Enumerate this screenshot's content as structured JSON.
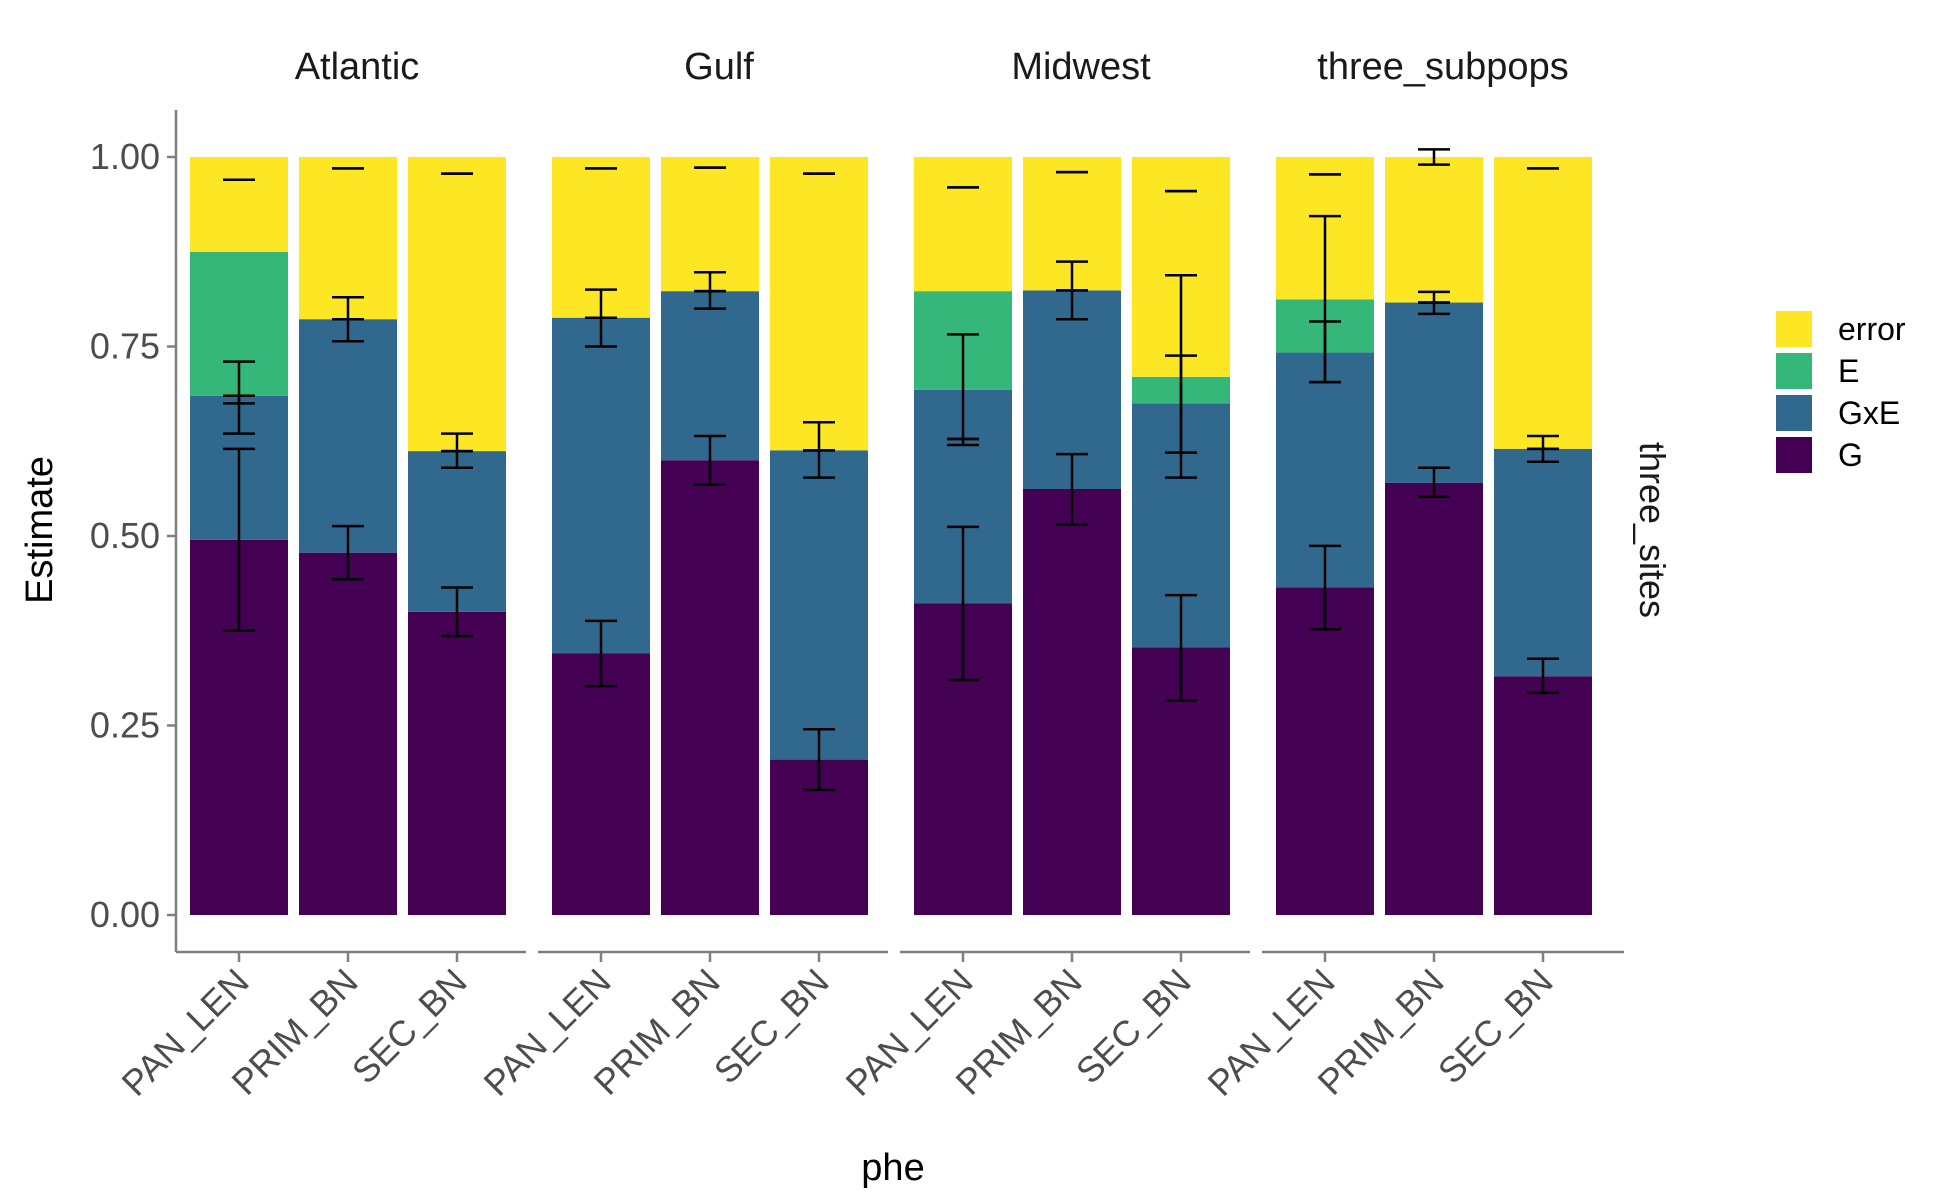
{
  "chart_data": {
    "type": "bar",
    "stacked": true,
    "xlabel": "phe",
    "ylabel": "Estimate",
    "ylim": [
      0,
      1.05
    ],
    "yticks": [
      0,
      0.25,
      0.5,
      0.75,
      1.0
    ],
    "ytick_labels": [
      "0.00",
      "0.25",
      "0.50",
      "0.75",
      "1.00"
    ],
    "row_facet": "three_sites",
    "legend_position": "right",
    "grid": false,
    "categories": [
      "PAN_LEN",
      "PRIM_BN",
      "SEC_BN"
    ],
    "stack_order": [
      "G",
      "GxE",
      "E",
      "error"
    ],
    "legend": [
      {
        "name": "error",
        "color": "#FDE725"
      },
      {
        "name": "E",
        "color": "#35B779"
      },
      {
        "name": "GxE",
        "color": "#31688E"
      },
      {
        "name": "G",
        "color": "#440154"
      }
    ],
    "facets": [
      {
        "label": "Atlantic",
        "bars": [
          {
            "category": "PAN_LEN",
            "G": {
              "value": 0.495,
              "lo": 0.375,
              "hi": 0.615
            },
            "GxE": {
              "value": 0.19,
              "lo": 0.635,
              "hi": 0.73
            },
            "E": {
              "value": 0.19,
              "lo": 0.675,
              "hi": 0.685
            },
            "error": {
              "value": 0.125,
              "lo": 0.97,
              "hi": 0.97
            }
          },
          {
            "category": "PRIM_BN",
            "G": {
              "value": 0.478,
              "lo": 0.443,
              "hi": 0.513
            },
            "GxE": {
              "value": 0.308,
              "lo": 0.757,
              "hi": 0.815
            },
            "E": {
              "value": 0,
              "lo": 0.786,
              "hi": 0.786
            },
            "error": {
              "value": 0.214,
              "lo": 0.985,
              "hi": 0.985
            }
          },
          {
            "category": "SEC_BN",
            "G": {
              "value": 0.4,
              "lo": 0.368,
              "hi": 0.432
            },
            "GxE": {
              "value": 0.212,
              "lo": 0.59,
              "hi": 0.635
            },
            "E": {
              "value": 0,
              "lo": 0.612,
              "hi": 0.612
            },
            "error": {
              "value": 0.388,
              "lo": 0.978,
              "hi": 0.978
            }
          }
        ]
      },
      {
        "label": "Gulf",
        "bars": [
          {
            "category": "PAN_LEN",
            "G": {
              "value": 0.345,
              "lo": 0.302,
              "hi": 0.388
            },
            "GxE": {
              "value": 0.443,
              "lo": 0.75,
              "hi": 0.825
            },
            "E": {
              "value": 0,
              "lo": 0.788,
              "hi": 0.788
            },
            "error": {
              "value": 0.212,
              "lo": 0.985,
              "hi": 0.985
            }
          },
          {
            "category": "PRIM_BN",
            "G": {
              "value": 0.6,
              "lo": 0.568,
              "hi": 0.632
            },
            "GxE": {
              "value": 0.223,
              "lo": 0.8,
              "hi": 0.848
            },
            "E": {
              "value": 0,
              "lo": 0.823,
              "hi": 0.823
            },
            "error": {
              "value": 0.177,
              "lo": 0.986,
              "hi": 0.986
            }
          },
          {
            "category": "SEC_BN",
            "G": {
              "value": 0.205,
              "lo": 0.165,
              "hi": 0.245
            },
            "GxE": {
              "value": 0.408,
              "lo": 0.577,
              "hi": 0.65
            },
            "E": {
              "value": 0,
              "lo": 0.613,
              "hi": 0.613
            },
            "error": {
              "value": 0.387,
              "lo": 0.978,
              "hi": 0.978
            }
          }
        ]
      },
      {
        "label": "Midwest",
        "bars": [
          {
            "category": "PAN_LEN",
            "G": {
              "value": 0.411,
              "lo": 0.31,
              "hi": 0.512
            },
            "GxE": {
              "value": 0.282,
              "lo": 0.62,
              "hi": 0.766
            },
            "E": {
              "value": 0.13,
              "lo": 0.628,
              "hi": 0.628
            },
            "error": {
              "value": 0.177,
              "lo": 0.96,
              "hi": 0.96
            }
          },
          {
            "category": "PRIM_BN",
            "G": {
              "value": 0.562,
              "lo": 0.515,
              "hi": 0.608
            },
            "GxE": {
              "value": 0.262,
              "lo": 0.786,
              "hi": 0.862
            },
            "E": {
              "value": 0,
              "lo": 0.824,
              "hi": 0.824
            },
            "error": {
              "value": 0.176,
              "lo": 0.98,
              "hi": 0.98
            }
          },
          {
            "category": "SEC_BN",
            "G": {
              "value": 0.353,
              "lo": 0.283,
              "hi": 0.422
            },
            "GxE": {
              "value": 0.322,
              "lo": 0.577,
              "hi": 0.738
            },
            "E": {
              "value": 0.035,
              "lo": 0.61,
              "hi": 0.844
            },
            "error": {
              "value": 0.29,
              "lo": 0.955,
              "hi": 0.955
            }
          }
        ]
      },
      {
        "label": "three_subpops",
        "bars": [
          {
            "category": "PAN_LEN",
            "G": {
              "value": 0.432,
              "lo": 0.377,
              "hi": 0.487
            },
            "GxE": {
              "value": 0.31,
              "lo": 0.703,
              "hi": 0.783
            },
            "E": {
              "value": 0.07,
              "lo": 0.703,
              "hi": 0.922
            },
            "error": {
              "value": 0.188,
              "lo": 0.977,
              "hi": 0.977
            }
          },
          {
            "category": "PRIM_BN",
            "G": {
              "value": 0.57,
              "lo": 0.552,
              "hi": 0.59
            },
            "GxE": {
              "value": 0.238,
              "lo": 0.793,
              "hi": 0.822
            },
            "E": {
              "value": 0,
              "lo": 0.808,
              "hi": 0.808
            },
            "error": {
              "value": 0.192,
              "lo": 0.99,
              "hi": 1.01
            }
          },
          {
            "category": "SEC_BN",
            "G": {
              "value": 0.315,
              "lo": 0.293,
              "hi": 0.338
            },
            "GxE": {
              "value": 0.3,
              "lo": 0.598,
              "hi": 0.632
            },
            "E": {
              "value": 0,
              "lo": 0.615,
              "hi": 0.615
            },
            "error": {
              "value": 0.385,
              "lo": 0.985,
              "hi": 0.985
            }
          }
        ]
      }
    ]
  }
}
